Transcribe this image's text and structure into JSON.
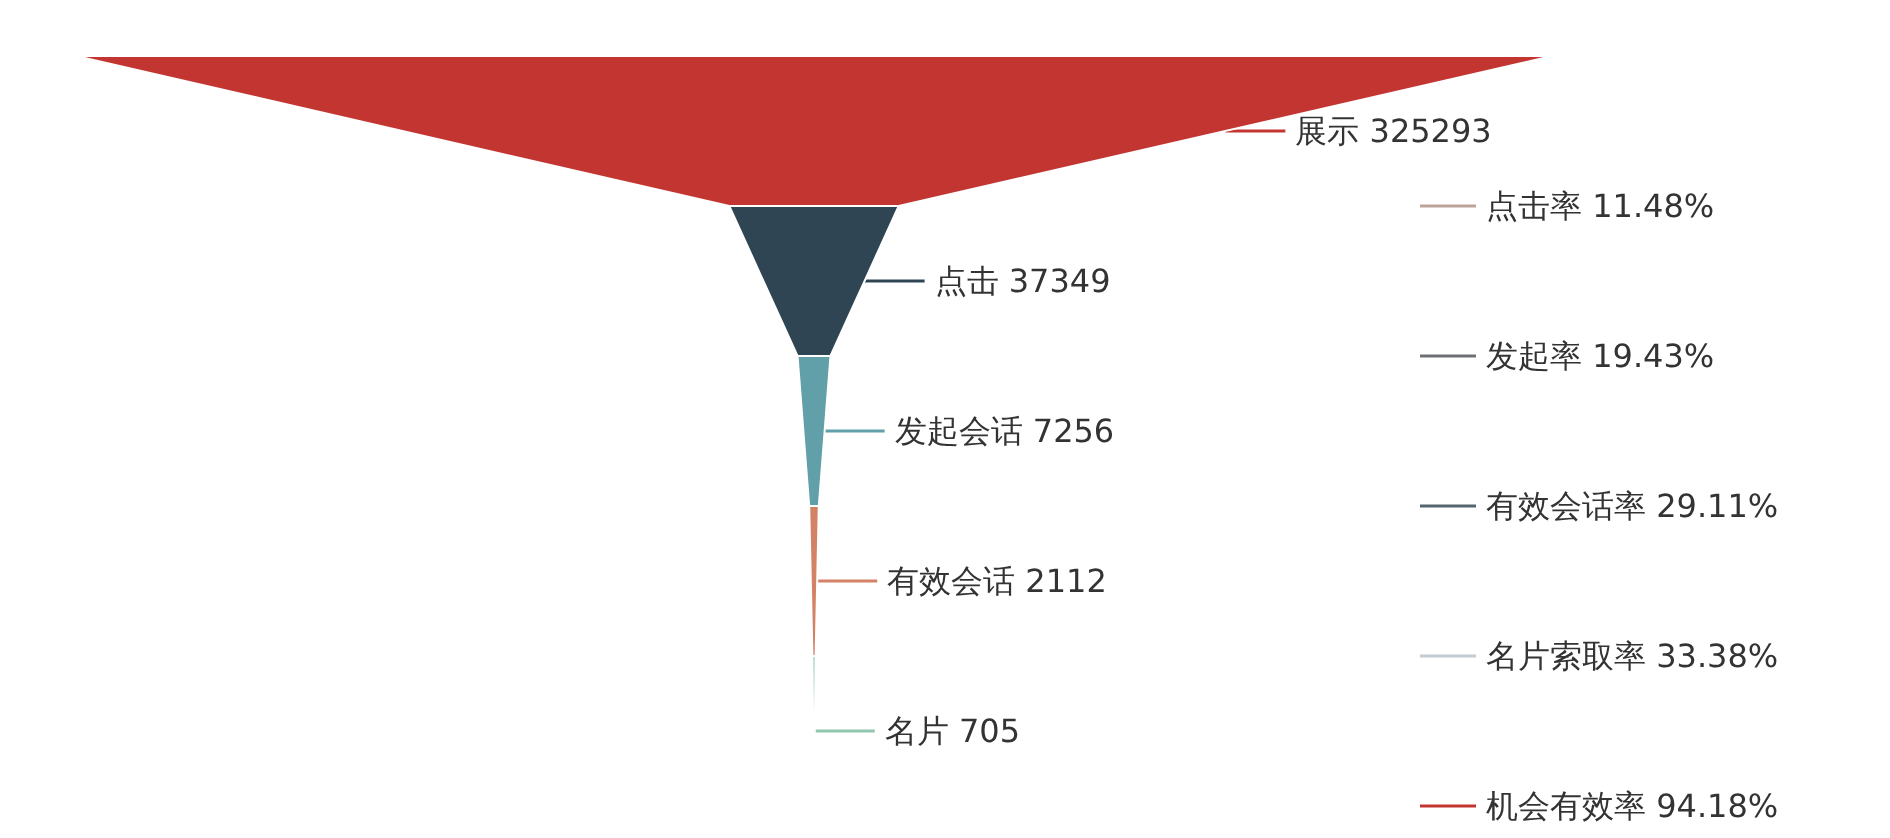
{
  "chart_data": {
    "type": "other",
    "data_labels": true,
    "categories": [
      "展示",
      "点击",
      "发起会话",
      "有效会话",
      "名片"
    ],
    "values": [
      325293,
      37349,
      7256,
      2112,
      705
    ],
    "colors": [
      "#c23531",
      "#2f4554",
      "#61a0a8",
      "#d48265",
      "#91c7ae"
    ],
    "annotations": [
      "点击率 11.48%",
      "发起率 19.43%",
      "有效会话率 29.11%",
      "名片索取率 33.38%",
      "机会有效率 94.18%"
    ]
  }
}
